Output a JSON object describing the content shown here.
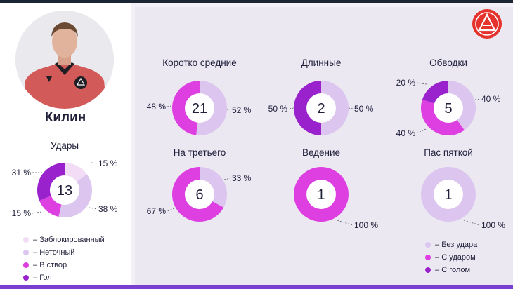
{
  "player": {
    "name": "Килин"
  },
  "colors": {
    "Заблокированный": "#f2dcf6",
    "Неточный": "#dcc5ef",
    "В створ": "#dd3fe0",
    "Гол": "#9a22cc",
    "Без удара": "#dcc5ef",
    "С ударом": "#dd3fe0",
    "С голом": "#9a22cc",
    "logo_red": "#e5322c"
  },
  "legends": {
    "shots": [
      "Заблокированный",
      "Неточный",
      "В створ",
      "Гол"
    ],
    "passes": [
      "Без удара",
      "С ударом",
      "С голом"
    ]
  },
  "chart_data": [
    {
      "type": "pie",
      "title": "Удары",
      "total": 13,
      "slices": [
        {
          "name": "Заблокированный",
          "percent": 15
        },
        {
          "name": "Неточный",
          "percent": 38
        },
        {
          "name": "В створ",
          "percent": 15
        },
        {
          "name": "Гол",
          "percent": 31
        }
      ],
      "labels": [
        "15 %",
        "38 %",
        "15 %",
        "31 %"
      ]
    },
    {
      "type": "pie",
      "title": "Коротко средние",
      "total": 21,
      "slices": [
        {
          "name": "Без удара",
          "percent": 52
        },
        {
          "name": "С ударом",
          "percent": 48
        }
      ],
      "labels": [
        "52 %",
        "48 %"
      ]
    },
    {
      "type": "pie",
      "title": "Длинные",
      "total": 2,
      "slices": [
        {
          "name": "Без удара",
          "percent": 50
        },
        {
          "name": "С голом",
          "percent": 50
        }
      ],
      "labels": [
        "50 %",
        "50 %"
      ]
    },
    {
      "type": "pie",
      "title": "Обводки",
      "total": 5,
      "slices": [
        {
          "name": "Без удара",
          "percent": 40
        },
        {
          "name": "С ударом",
          "percent": 40
        },
        {
          "name": "С голом",
          "percent": 20
        }
      ],
      "labels": [
        "40 %",
        "40 %",
        "20 %"
      ]
    },
    {
      "type": "pie",
      "title": "На третьего",
      "total": 6,
      "slices": [
        {
          "name": "Без удара",
          "percent": 33
        },
        {
          "name": "С ударом",
          "percent": 67
        }
      ],
      "labels": [
        "33 %",
        "67 %"
      ]
    },
    {
      "type": "pie",
      "title": "Ведение",
      "total": 1,
      "slices": [
        {
          "name": "С ударом",
          "percent": 100
        }
      ],
      "labels": [
        "100 %"
      ]
    },
    {
      "type": "pie",
      "title": "Пас пяткой",
      "total": 1,
      "slices": [
        {
          "name": "Без удара",
          "percent": 100
        }
      ],
      "labels": [
        "100 %"
      ]
    }
  ]
}
